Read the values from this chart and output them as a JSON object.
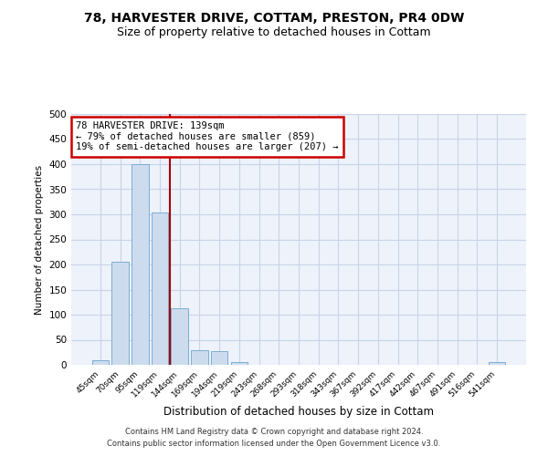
{
  "title": "78, HARVESTER DRIVE, COTTAM, PRESTON, PR4 0DW",
  "subtitle": "Size of property relative to detached houses in Cottam",
  "bar_labels": [
    "45sqm",
    "70sqm",
    "95sqm",
    "119sqm",
    "144sqm",
    "169sqm",
    "194sqm",
    "219sqm",
    "243sqm",
    "268sqm",
    "293sqm",
    "318sqm",
    "343sqm",
    "367sqm",
    "392sqm",
    "417sqm",
    "442sqm",
    "467sqm",
    "491sqm",
    "516sqm",
    "541sqm"
  ],
  "bar_values": [
    10,
    205,
    400,
    303,
    113,
    30,
    27,
    6,
    0,
    0,
    0,
    0,
    0,
    0,
    0,
    0,
    0,
    0,
    0,
    0,
    5
  ],
  "bar_color": "#ccdcee",
  "bar_edge_color": "#7aadd4",
  "grid_color": "#c8d4e8",
  "background_color": "#eef2fa",
  "ylabel": "Number of detached properties",
  "xlabel": "Distribution of detached houses by size in Cottam",
  "ylim": [
    0,
    500
  ],
  "yticks": [
    0,
    50,
    100,
    150,
    200,
    250,
    300,
    350,
    400,
    450,
    500
  ],
  "property_line_color": "#aa0000",
  "annotation_line1": "78 HARVESTER DRIVE: 139sqm",
  "annotation_line2": "← 79% of detached houses are smaller (859)",
  "annotation_line3": "19% of semi-detached houses are larger (207) →",
  "annotation_box_color": "#ffffff",
  "annotation_box_edge_color": "#cc0000",
  "footer_line1": "Contains HM Land Registry data © Crown copyright and database right 2024.",
  "footer_line2": "Contains public sector information licensed under the Open Government Licence v3.0.",
  "title_fontsize": 10,
  "subtitle_fontsize": 9
}
